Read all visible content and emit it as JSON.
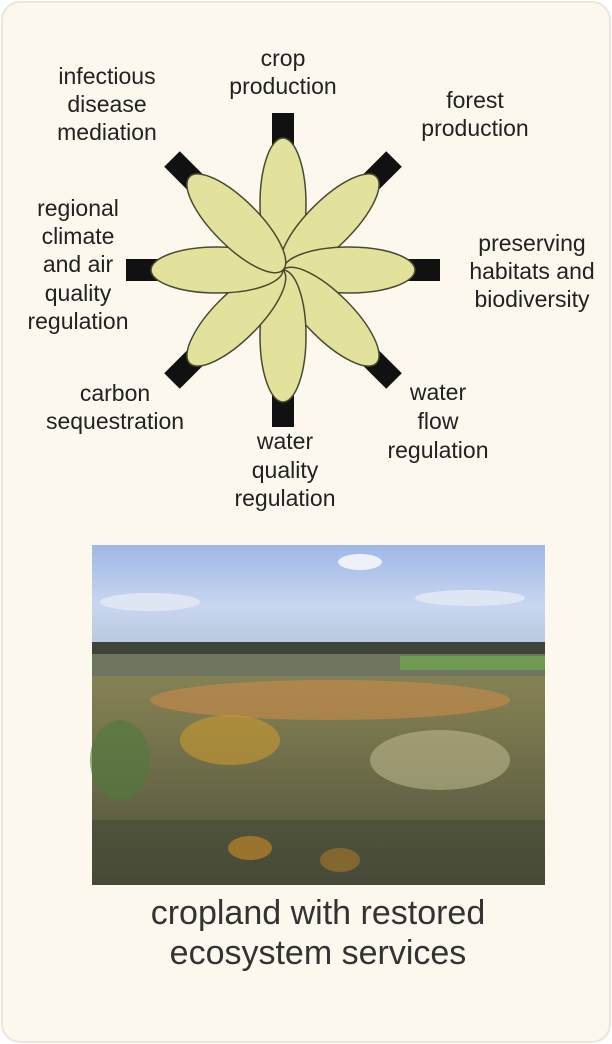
{
  "diagram": {
    "nodes": [
      {
        "lines": [
          "crop",
          "production"
        ]
      },
      {
        "lines": [
          "forest",
          "production"
        ]
      },
      {
        "lines": [
          "preserving",
          "habitats and",
          "biodiversity"
        ]
      },
      {
        "lines": [
          "water",
          "flow",
          "regulation"
        ]
      },
      {
        "lines": [
          "water",
          "quality",
          "regulation"
        ]
      },
      {
        "lines": [
          "carbon",
          "sequestration"
        ]
      },
      {
        "lines": [
          "regional",
          "climate",
          "and air",
          "quality",
          "regulation"
        ]
      },
      {
        "lines": [
          "infectious",
          "disease",
          "mediation"
        ]
      }
    ],
    "caption": [
      "cropland with restored",
      "ecosystem services"
    ]
  }
}
